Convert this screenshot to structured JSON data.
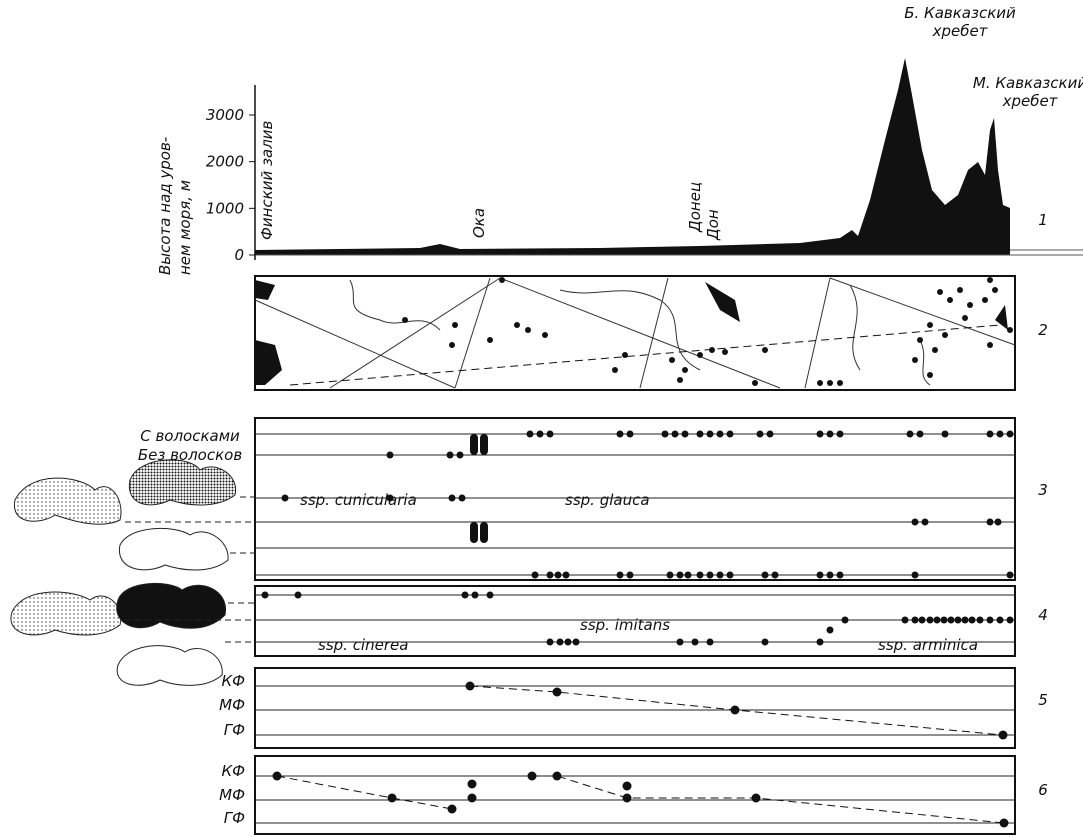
{
  "profile": {
    "axis_label": [
      "Высота над уров-",
      "нем моря, м"
    ],
    "ticks": [
      0,
      1000,
      2000,
      3000
    ],
    "peaks": [
      [
        "Б. Кавказский",
        "хребет"
      ],
      [
        "М. Кавказский",
        "хребет"
      ]
    ],
    "places": [
      "Финский залив",
      "Ока",
      "Донец",
      "Дон"
    ]
  },
  "panel_numbers": [
    "1",
    "2",
    "3",
    "4",
    "5",
    "6"
  ],
  "hair_labels": [
    "С волосками",
    "Без волосков"
  ],
  "subspecies": [
    "ssp. cunicularia",
    "ssp. glauca",
    "ssp. imitans",
    "ssp. cinerea",
    "ssp. arminica"
  ],
  "phase_labels": [
    [
      "КФ",
      "МФ",
      "ГФ"
    ],
    [
      "КФ",
      "МФ",
      "ГФ"
    ]
  ]
}
